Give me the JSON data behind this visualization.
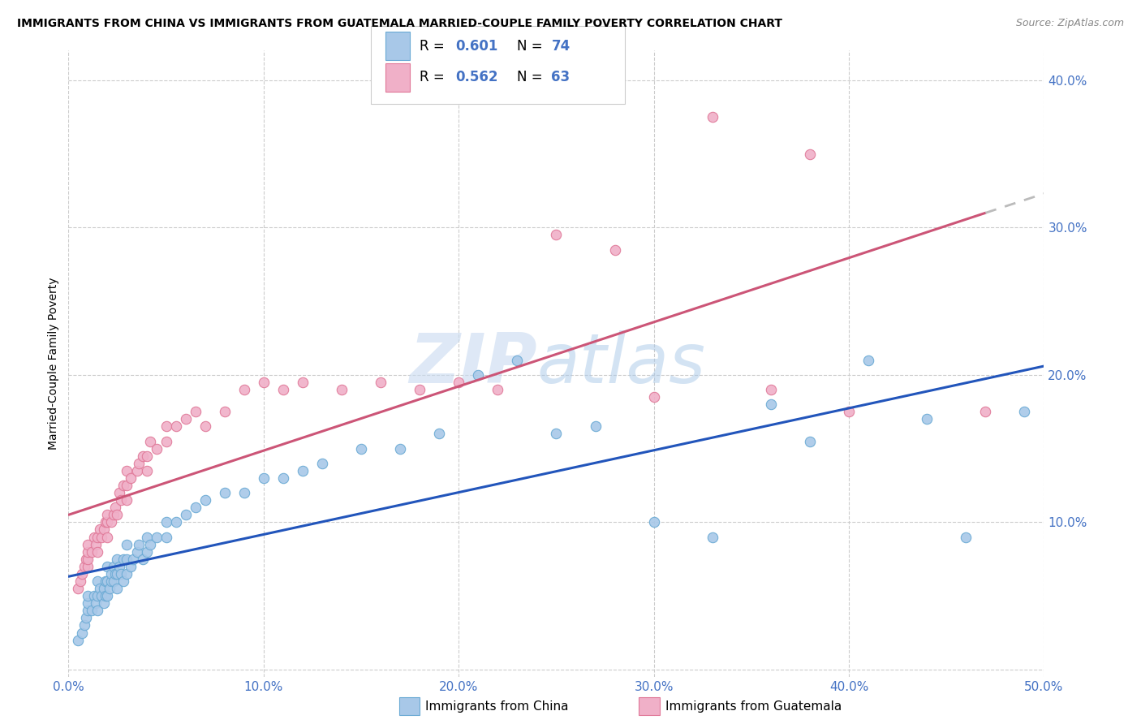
{
  "title": "IMMIGRANTS FROM CHINA VS IMMIGRANTS FROM GUATEMALA MARRIED-COUPLE FAMILY POVERTY CORRELATION CHART",
  "source": "Source: ZipAtlas.com",
  "ylabel": "Married-Couple Family Poverty",
  "xlim": [
    0.0,
    0.5
  ],
  "ylim": [
    -0.005,
    0.42
  ],
  "xticks": [
    0.0,
    0.1,
    0.2,
    0.3,
    0.4,
    0.5
  ],
  "yticks": [
    0.0,
    0.1,
    0.2,
    0.3,
    0.4
  ],
  "xtick_labels": [
    "0.0%",
    "10.0%",
    "20.0%",
    "30.0%",
    "40.0%",
    "50.0%"
  ],
  "ytick_labels": [
    "",
    "10.0%",
    "20.0%",
    "30.0%",
    "40.0%"
  ],
  "china_color": "#a8c8e8",
  "china_edge_color": "#6aaad4",
  "guatemala_color": "#f0b0c8",
  "guatemala_edge_color": "#e07898",
  "china_R": "0.601",
  "china_N": "74",
  "guatemala_R": "0.562",
  "guatemala_N": "63",
  "regression_china_color": "#2255bb",
  "regression_guatemala_color": "#cc5577",
  "tick_color": "#4472c4",
  "china_scatter_x": [
    0.005,
    0.007,
    0.008,
    0.009,
    0.01,
    0.01,
    0.01,
    0.012,
    0.013,
    0.014,
    0.015,
    0.015,
    0.015,
    0.016,
    0.017,
    0.018,
    0.018,
    0.019,
    0.019,
    0.02,
    0.02,
    0.02,
    0.021,
    0.022,
    0.022,
    0.023,
    0.023,
    0.024,
    0.025,
    0.025,
    0.025,
    0.026,
    0.027,
    0.028,
    0.028,
    0.03,
    0.03,
    0.03,
    0.032,
    0.033,
    0.035,
    0.036,
    0.038,
    0.04,
    0.04,
    0.042,
    0.045,
    0.05,
    0.05,
    0.055,
    0.06,
    0.065,
    0.07,
    0.08,
    0.09,
    0.1,
    0.11,
    0.12,
    0.13,
    0.15,
    0.17,
    0.19,
    0.21,
    0.23,
    0.25,
    0.27,
    0.3,
    0.33,
    0.36,
    0.38,
    0.41,
    0.44,
    0.46,
    0.49
  ],
  "china_scatter_y": [
    0.02,
    0.025,
    0.03,
    0.035,
    0.04,
    0.045,
    0.05,
    0.04,
    0.05,
    0.045,
    0.04,
    0.05,
    0.06,
    0.055,
    0.05,
    0.045,
    0.055,
    0.05,
    0.06,
    0.05,
    0.06,
    0.07,
    0.055,
    0.06,
    0.065,
    0.06,
    0.07,
    0.065,
    0.055,
    0.065,
    0.075,
    0.07,
    0.065,
    0.06,
    0.075,
    0.065,
    0.075,
    0.085,
    0.07,
    0.075,
    0.08,
    0.085,
    0.075,
    0.08,
    0.09,
    0.085,
    0.09,
    0.09,
    0.1,
    0.1,
    0.105,
    0.11,
    0.115,
    0.12,
    0.12,
    0.13,
    0.13,
    0.135,
    0.14,
    0.15,
    0.15,
    0.16,
    0.2,
    0.21,
    0.16,
    0.165,
    0.1,
    0.09,
    0.18,
    0.155,
    0.21,
    0.17,
    0.09,
    0.175
  ],
  "guatemala_scatter_x": [
    0.005,
    0.006,
    0.007,
    0.008,
    0.009,
    0.01,
    0.01,
    0.01,
    0.01,
    0.012,
    0.013,
    0.014,
    0.015,
    0.015,
    0.016,
    0.017,
    0.018,
    0.019,
    0.02,
    0.02,
    0.02,
    0.022,
    0.023,
    0.024,
    0.025,
    0.026,
    0.027,
    0.028,
    0.03,
    0.03,
    0.03,
    0.032,
    0.035,
    0.036,
    0.038,
    0.04,
    0.04,
    0.042,
    0.045,
    0.05,
    0.05,
    0.055,
    0.06,
    0.065,
    0.07,
    0.08,
    0.09,
    0.1,
    0.11,
    0.12,
    0.14,
    0.16,
    0.18,
    0.2,
    0.22,
    0.25,
    0.28,
    0.3,
    0.33,
    0.36,
    0.4,
    0.38,
    0.47
  ],
  "guatemala_scatter_y": [
    0.055,
    0.06,
    0.065,
    0.07,
    0.075,
    0.07,
    0.075,
    0.08,
    0.085,
    0.08,
    0.09,
    0.085,
    0.08,
    0.09,
    0.095,
    0.09,
    0.095,
    0.1,
    0.09,
    0.1,
    0.105,
    0.1,
    0.105,
    0.11,
    0.105,
    0.12,
    0.115,
    0.125,
    0.115,
    0.125,
    0.135,
    0.13,
    0.135,
    0.14,
    0.145,
    0.135,
    0.145,
    0.155,
    0.15,
    0.155,
    0.165,
    0.165,
    0.17,
    0.175,
    0.165,
    0.175,
    0.19,
    0.195,
    0.19,
    0.195,
    0.19,
    0.195,
    0.19,
    0.195,
    0.19,
    0.295,
    0.285,
    0.185,
    0.375,
    0.19,
    0.175,
    0.35,
    0.175
  ]
}
